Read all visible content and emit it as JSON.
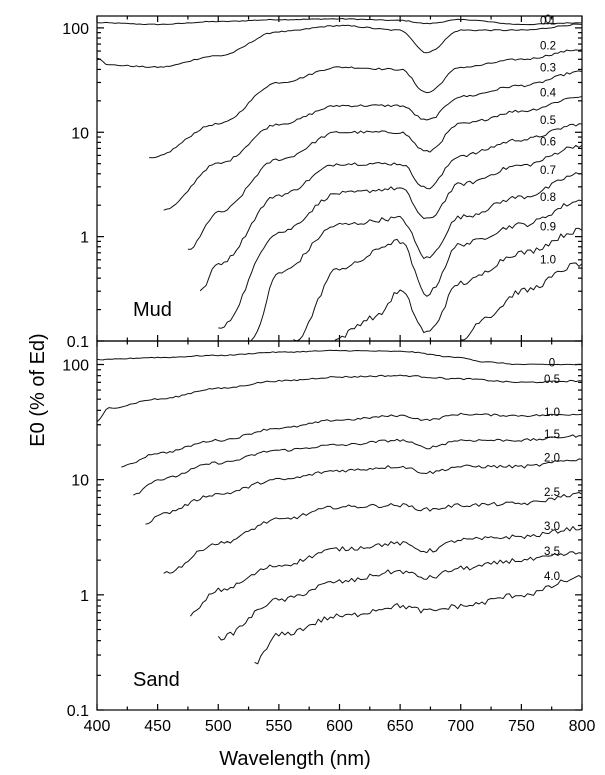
{
  "chart_data": [
    {
      "type": "line",
      "panel_label": "Mud",
      "xlabel": "Wavelength (nm)",
      "ylabel": "E0 (% of Ed)",
      "yscale": "log",
      "xlim": [
        400,
        800
      ],
      "ylim": [
        0.1,
        130
      ],
      "x_ticks": [
        400,
        450,
        500,
        550,
        600,
        650,
        700,
        750,
        800
      ],
      "y_ticks": [
        {
          "value": 100,
          "label": "100"
        },
        {
          "value": 10,
          "label": "10"
        },
        {
          "value": 1,
          "label": "1"
        },
        {
          "value": 0.1,
          "label": "0.1"
        }
      ],
      "series": [
        {
          "name": "0",
          "x": [
            400,
            450,
            500,
            550,
            600,
            650,
            672,
            700,
            750,
            800
          ],
          "y": [
            112,
            108,
            115,
            120,
            122,
            118,
            110,
            120,
            108,
            112
          ]
        },
        {
          "name": "0.1",
          "x": [
            400,
            410,
            450,
            500,
            550,
            600,
            650,
            672,
            700,
            750,
            800
          ],
          "y": [
            52,
            44,
            42,
            54,
            92,
            105,
            95,
            58,
            95,
            95,
            108
          ]
        },
        {
          "name": "0.2",
          "x": [
            443,
            500,
            550,
            600,
            650,
            672,
            700,
            750,
            800
          ],
          "y": [
            5.6,
            12,
            30,
            42,
            40,
            24,
            42,
            50,
            62
          ]
        },
        {
          "name": "0.3",
          "x": [
            455,
            500,
            550,
            600,
            650,
            672,
            700,
            750,
            800
          ],
          "y": [
            1.8,
            5,
            12,
            18,
            18,
            13,
            22,
            28,
            38
          ]
        },
        {
          "name": "0.4",
          "x": [
            475,
            500,
            550,
            600,
            650,
            672,
            700,
            750,
            800
          ],
          "y": [
            0.75,
            1.7,
            5.5,
            10,
            10,
            6.5,
            12,
            16,
            22
          ]
        },
        {
          "name": "0.5",
          "x": [
            485,
            500,
            550,
            600,
            650,
            672,
            700,
            750,
            800
          ],
          "y": [
            0.3,
            0.55,
            2.5,
            5,
            5,
            2.9,
            6,
            8.5,
            12
          ]
        },
        {
          "name": "0.6",
          "x": [
            500,
            550,
            600,
            650,
            672,
            700,
            750,
            800
          ],
          "y": [
            0.13,
            1.1,
            2.6,
            2.9,
            1.45,
            3.2,
            4.8,
            7.5
          ]
        },
        {
          "name": "0.7",
          "x": [
            527,
            550,
            600,
            650,
            672,
            700,
            750,
            800
          ],
          "y": [
            0.1,
            0.45,
            1.3,
            1.5,
            0.62,
            1.55,
            2.4,
            4
          ]
        },
        {
          "name": "0.8",
          "x": [
            562,
            600,
            650,
            672,
            700,
            750,
            800
          ],
          "y": [
            0.1,
            0.5,
            0.9,
            0.28,
            0.85,
            1.3,
            2.2
          ]
        },
        {
          "name": "0.9",
          "x": [
            592,
            630,
            650,
            672,
            700,
            750,
            800
          ],
          "y": [
            0.1,
            0.17,
            0.3,
            0.12,
            0.36,
            0.7,
            1.15
          ]
        },
        {
          "name": "1.0",
          "x": [
            700,
            720,
            750,
            800
          ],
          "y": [
            0.1,
            0.17,
            0.3,
            0.55
          ]
        }
      ]
    },
    {
      "type": "line",
      "panel_label": "Sand",
      "xlabel": "Wavelength (nm)",
      "ylabel": "E0 (% of Ed)",
      "yscale": "log",
      "xlim": [
        400,
        800
      ],
      "ylim": [
        0.1,
        160
      ],
      "x_ticks": [
        400,
        450,
        500,
        550,
        600,
        650,
        700,
        750,
        800
      ],
      "y_ticks": [
        {
          "value": 100,
          "label": "100"
        },
        {
          "value": 10,
          "label": "10"
        },
        {
          "value": 1,
          "label": "1"
        },
        {
          "value": 0.1,
          "label": "0.1"
        }
      ],
      "series": [
        {
          "name": "0",
          "x": [
            400,
            450,
            500,
            550,
            600,
            650,
            700,
            720,
            750,
            800
          ],
          "y": [
            110,
            115,
            120,
            128,
            132,
            130,
            115,
            105,
            100,
            100
          ]
        },
        {
          "name": "0.5",
          "x": [
            400,
            410,
            450,
            500,
            550,
            600,
            650,
            700,
            750,
            800
          ],
          "y": [
            32,
            42,
            50,
            62,
            72,
            78,
            80,
            75,
            70,
            72
          ]
        },
        {
          "name": "1.0",
          "x": [
            420,
            450,
            500,
            550,
            600,
            650,
            672,
            700,
            750,
            800
          ],
          "y": [
            13,
            17,
            22,
            28,
            33,
            36,
            33,
            37,
            36,
            37
          ]
        },
        {
          "name": "1.5",
          "x": [
            430,
            450,
            500,
            550,
            600,
            650,
            672,
            700,
            750,
            800
          ],
          "y": [
            7.5,
            10,
            14,
            18,
            20,
            22,
            19,
            22,
            22,
            24
          ]
        },
        {
          "name": "2.0",
          "x": [
            440,
            450,
            500,
            550,
            600,
            650,
            672,
            700,
            750,
            800
          ],
          "y": [
            4,
            5,
            7.5,
            10,
            12,
            13,
            11.5,
            13,
            13,
            15
          ]
        },
        {
          "name": "2.5",
          "x": [
            455,
            500,
            550,
            600,
            650,
            672,
            700,
            750,
            800
          ],
          "y": [
            1.55,
            2.8,
            4.5,
            5.8,
            6,
            5.5,
            6,
            6.2,
            7.5
          ]
        },
        {
          "name": "3.0",
          "x": [
            477,
            500,
            550,
            600,
            650,
            672,
            700,
            750,
            800
          ],
          "y": [
            0.68,
            1.1,
            1.8,
            2.5,
            2.8,
            2.4,
            3,
            3.2,
            3.8
          ]
        },
        {
          "name": "3.5",
          "x": [
            500,
            550,
            600,
            650,
            672,
            700,
            750,
            800
          ],
          "y": [
            0.42,
            0.9,
            1.3,
            1.6,
            1.4,
            1.7,
            2,
            2.3
          ]
        },
        {
          "name": "4.0",
          "x": [
            530,
            550,
            600,
            650,
            672,
            700,
            750,
            800
          ],
          "y": [
            0.26,
            0.45,
            0.65,
            0.8,
            0.72,
            0.8,
            1,
            1.4
          ]
        }
      ]
    }
  ]
}
